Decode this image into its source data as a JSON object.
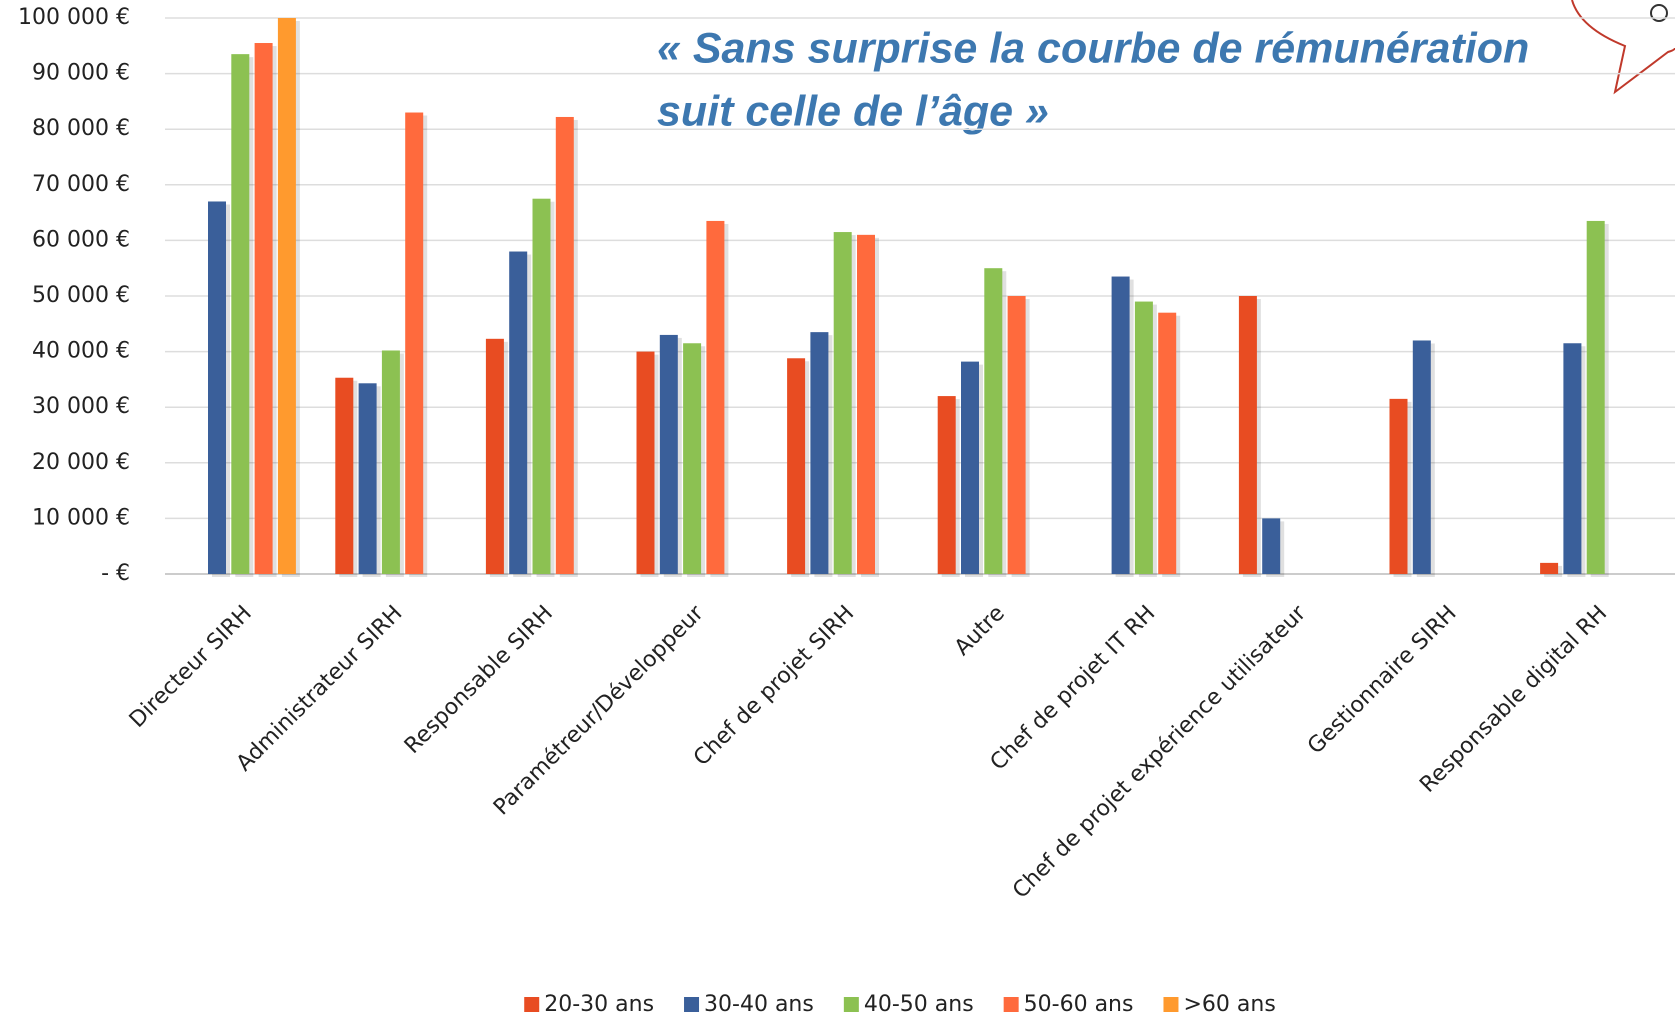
{
  "chart_data": {
    "type": "bar",
    "annotation": [
      "« Sans surprise la courbe de rémunération",
      "suit celle de l’âge »"
    ],
    "categories": [
      "Directeur SIRH",
      "Administrateur SIRH",
      "Responsable SIRH",
      "Paramétreur/Développeur",
      "Chef de projet SIRH",
      "Autre",
      "Chef de projet IT RH",
      "Chef de projet expérience utilisateur",
      "Gestionnaire SIRH",
      "Responsable digital RH"
    ],
    "series": [
      {
        "name": "20-30 ans",
        "color": "#e84c22",
        "values": [
          null,
          35300,
          42300,
          40000,
          38800,
          32000,
          null,
          50000,
          31500,
          2000
        ]
      },
      {
        "name": "30-40 ans",
        "color": "#3a5f9a",
        "values": [
          67000,
          34300,
          58000,
          43000,
          43500,
          38200,
          53500,
          10000,
          42000,
          41500
        ]
      },
      {
        "name": "40-50 ans",
        "color": "#8cc152",
        "values": [
          93500,
          40200,
          67500,
          41500,
          61500,
          55000,
          49000,
          null,
          null,
          63500
        ]
      },
      {
        "name": "50-60 ans",
        "color": "#ff6a3d",
        "values": [
          95500,
          83000,
          82200,
          63500,
          61000,
          50000,
          47000,
          null,
          null,
          null
        ]
      },
      {
        "name": ">60 ans",
        "color": "#ff9a2e",
        "values": [
          100000,
          null,
          null,
          null,
          null,
          null,
          null,
          null,
          null,
          null
        ]
      }
    ],
    "ylim": [
      0,
      100000
    ],
    "yticks": [
      {
        "value": 0,
        "label": "-   €"
      },
      {
        "value": 10000,
        "label": "10 000 €"
      },
      {
        "value": 20000,
        "label": "20 000 €"
      },
      {
        "value": 30000,
        "label": "30 000 €"
      },
      {
        "value": 40000,
        "label": "40 000 €"
      },
      {
        "value": 50000,
        "label": "50 000 €"
      },
      {
        "value": 60000,
        "label": "60 000 €"
      },
      {
        "value": 70000,
        "label": "70 000 €"
      },
      {
        "value": 80000,
        "label": "80 000 €"
      },
      {
        "value": 90000,
        "label": "90 000 €"
      },
      {
        "value": 100000,
        "label": "100 000 €"
      }
    ],
    "grid": true,
    "legend": "bottom"
  }
}
